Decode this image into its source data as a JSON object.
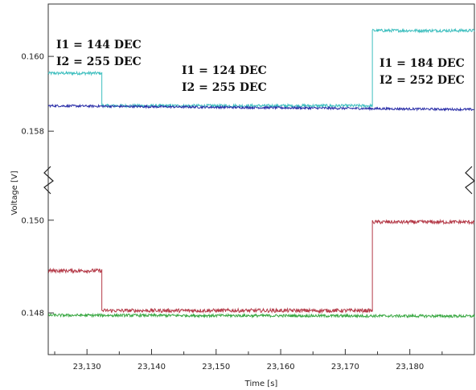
{
  "chart_data": {
    "type": "line",
    "xlabel": "Time [s]",
    "ylabel": "Voltage [V]",
    "xlim": [
      23124,
      23190
    ],
    "x_ticks": [
      23130,
      23140,
      23150,
      23160,
      23170,
      23180
    ],
    "x_tick_labels": [
      "23,130",
      "23,140",
      "23,150",
      "23,160",
      "23,170",
      "23,180"
    ],
    "y_ticks_upper": [
      0.158,
      0.16
    ],
    "y_tick_labels_upper": [
      "0.158",
      "0.160"
    ],
    "y_ticks_lower": [
      0.148,
      0.15
    ],
    "y_tick_labels_lower": [
      "0.148",
      "0.150"
    ],
    "ylim_upper": [
      0.1571,
      0.1614
    ],
    "ylim_lower": [
      0.1471,
      0.1505
    ],
    "axis_break": true,
    "grid": false,
    "series": [
      {
        "color": "#3fbfbf",
        "panel": "upper",
        "noise": 4e-05,
        "points": [
          [
            23124,
            0.15955
          ],
          [
            23132.3,
            0.15955
          ],
          [
            23132.3,
            0.15868
          ],
          [
            23174.2,
            0.15868
          ],
          [
            23174.2,
            0.16069
          ],
          [
            23190,
            0.16069
          ]
        ]
      },
      {
        "color": "#2b2fa8",
        "panel": "upper",
        "noise": 3e-05,
        "points": [
          [
            23124,
            0.15868
          ],
          [
            23190,
            0.15858
          ]
        ]
      },
      {
        "color": "#b43a48",
        "panel": "lower",
        "noise": 4e-05,
        "points": [
          [
            23124,
            0.14891
          ],
          [
            23132.3,
            0.14891
          ],
          [
            23132.3,
            0.14805
          ],
          [
            23174.2,
            0.14805
          ],
          [
            23174.2,
            0.14996
          ],
          [
            23190,
            0.14996
          ]
        ]
      },
      {
        "color": "#3aa843",
        "panel": "lower",
        "noise": 3e-05,
        "points": [
          [
            23124,
            0.14795
          ],
          [
            23190,
            0.14793
          ]
        ]
      }
    ],
    "annotations": [
      {
        "lines": [
          "I1 = 144 DEC",
          "I2 = 255 DEC"
        ]
      },
      {
        "lines": [
          "I1 = 124 DEC",
          "I2 = 255 DEC"
        ]
      },
      {
        "lines": [
          "I1 = 184 DEC",
          "I2 = 252 DEC"
        ]
      }
    ]
  }
}
